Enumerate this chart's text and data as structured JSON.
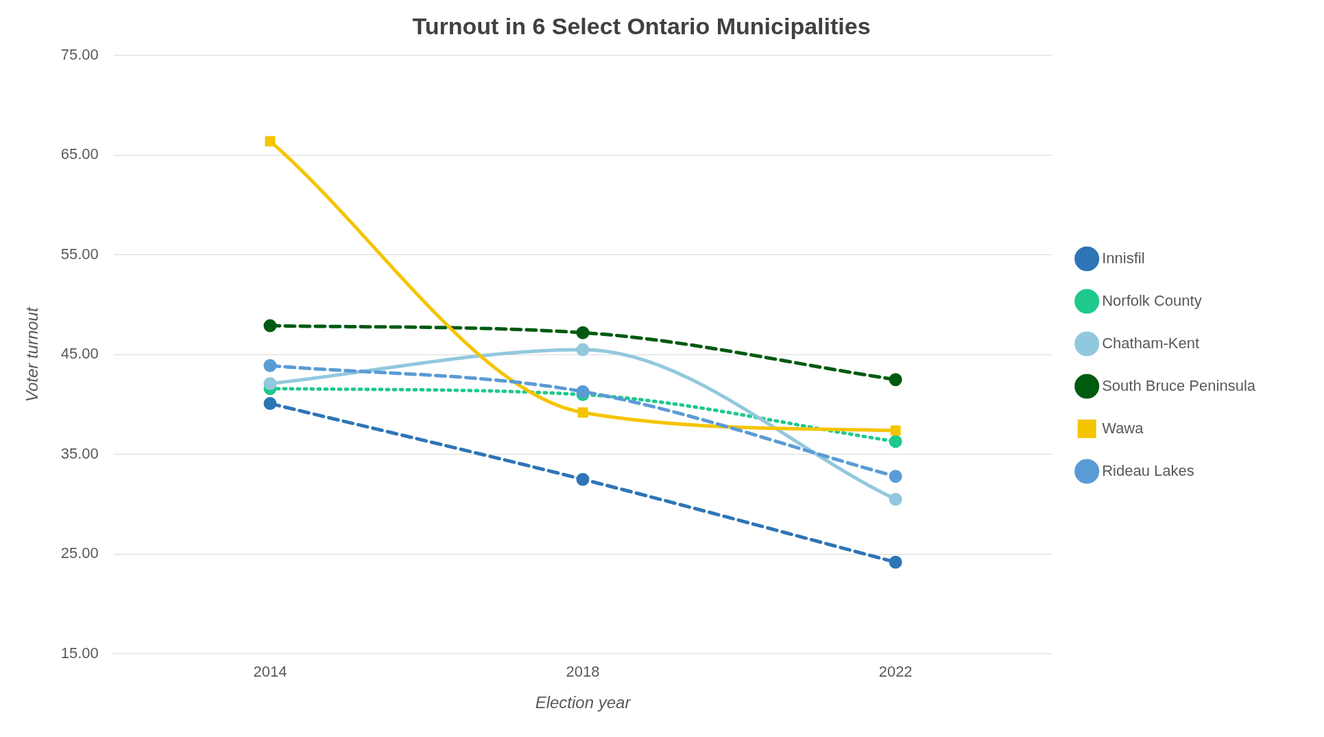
{
  "chart_data": {
    "type": "line",
    "title": "Turnout in 6 Select Ontario Municipalities",
    "xlabel": "Election year",
    "ylabel": "Voter turnout",
    "categories": [
      "2014",
      "2018",
      "2022"
    ],
    "series": [
      {
        "name": "Innisfil",
        "color": "#2e75b6",
        "values": [
          40.1,
          32.5,
          24.2
        ],
        "marker": "circle",
        "line_style": "dashed"
      },
      {
        "name": "Norfolk County",
        "color": "#1fc98c",
        "values": [
          41.6,
          41.0,
          36.3
        ],
        "marker": "circle",
        "line_style": "dotted"
      },
      {
        "name": "Chatham-Kent",
        "color": "#92c8de",
        "values": [
          42.1,
          45.5,
          30.5
        ],
        "marker": "circle",
        "line_style": "solid"
      },
      {
        "name": "South Bruce Peninsula",
        "color": "#005a10",
        "values": [
          47.9,
          47.2,
          42.5
        ],
        "marker": "circle",
        "line_style": "dashed"
      },
      {
        "name": "Wawa",
        "color": "#f5c400",
        "values": [
          66.4,
          39.2,
          37.4
        ],
        "marker": "square",
        "line_style": "solid"
      },
      {
        "name": "Rideau Lakes",
        "color": "#5b9bd5",
        "values": [
          43.9,
          41.3,
          32.8
        ],
        "marker": "circle",
        "line_style": "dashed"
      }
    ],
    "ylim": [
      15,
      75
    ],
    "yticks": [
      {
        "value": 15,
        "label": "15.00"
      },
      {
        "value": 25,
        "label": "25.00"
      },
      {
        "value": 35,
        "label": "35.00"
      },
      {
        "value": 45,
        "label": "45.00"
      },
      {
        "value": 55,
        "label": "55.00"
      },
      {
        "value": 65,
        "label": "65.00"
      },
      {
        "value": 75,
        "label": "75.00"
      }
    ],
    "grid": "y",
    "legend": "right"
  }
}
